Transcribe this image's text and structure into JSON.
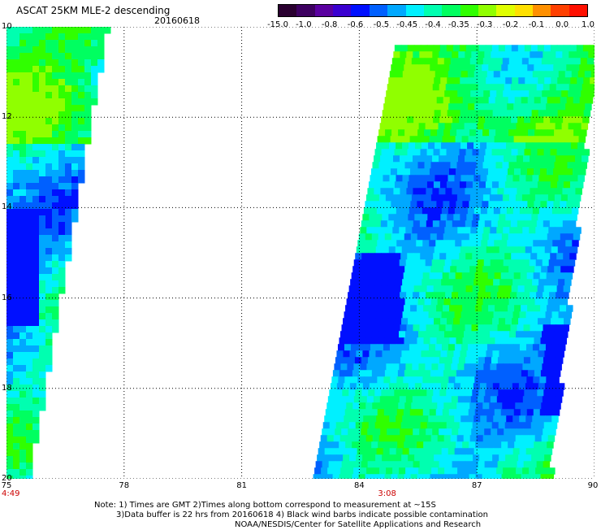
{
  "header": {
    "title": "ASCAT 25KM MLE-2 descending",
    "date": "20160618"
  },
  "colorbar": {
    "labels": [
      "-15.0",
      "-1.0",
      "-0.8",
      "-0.6",
      "-0.5",
      "-0.45",
      "-0.4",
      "-0.35",
      "-0.3",
      "-0.2",
      "-0.1",
      "0.0",
      "1.0"
    ],
    "colors": [
      "#2a0030",
      "#3d0060",
      "#5a00a0",
      "#3a00d0",
      "#0010ff",
      "#0060ff",
      "#00a8ff",
      "#00f0ff",
      "#00ffb0",
      "#00ff60",
      "#30ff00",
      "#90ff00",
      "#e0ff00",
      "#ffe000",
      "#ff9000",
      "#ff4000",
      "#ff1000"
    ]
  },
  "map": {
    "lat_labels": [
      "10",
      "12",
      "14",
      "16",
      "18",
      "20"
    ],
    "lon_labels": [
      "75",
      "78",
      "81",
      "84",
      "87",
      "90"
    ],
    "lat_range": [
      10,
      20
    ],
    "lon_range": [
      75,
      90
    ],
    "time_labels": [
      "4:49",
      "3:08"
    ],
    "time_label_lons": [
      75,
      84.6
    ],
    "swaths": [
      {
        "name": "west-swath",
        "lon_start": 75,
        "lat_top": 10,
        "lat_bottom": 20,
        "lon_west": 75,
        "lon_east_top": 77.5,
        "lon_east_bottom": 75.5
      },
      {
        "name": "east-swath",
        "lat_top": 10.4,
        "lat_bottom": 20,
        "lon_west_top": 84.9,
        "lon_west_bottom": 82.8,
        "lon_east_top": 90,
        "lon_east_bottom": 88.8
      }
    ]
  },
  "note": {
    "line1": "Note: 1) Times are GMT 2)Times along bottom correspond to measurement at ~15S",
    "line2": "3)Data buffer is 22 hrs from 20160618 4) Black wind barbs indicate possible contamination",
    "line3": "NOAA/NESDIS/Center for Satellite Applications and Research"
  }
}
